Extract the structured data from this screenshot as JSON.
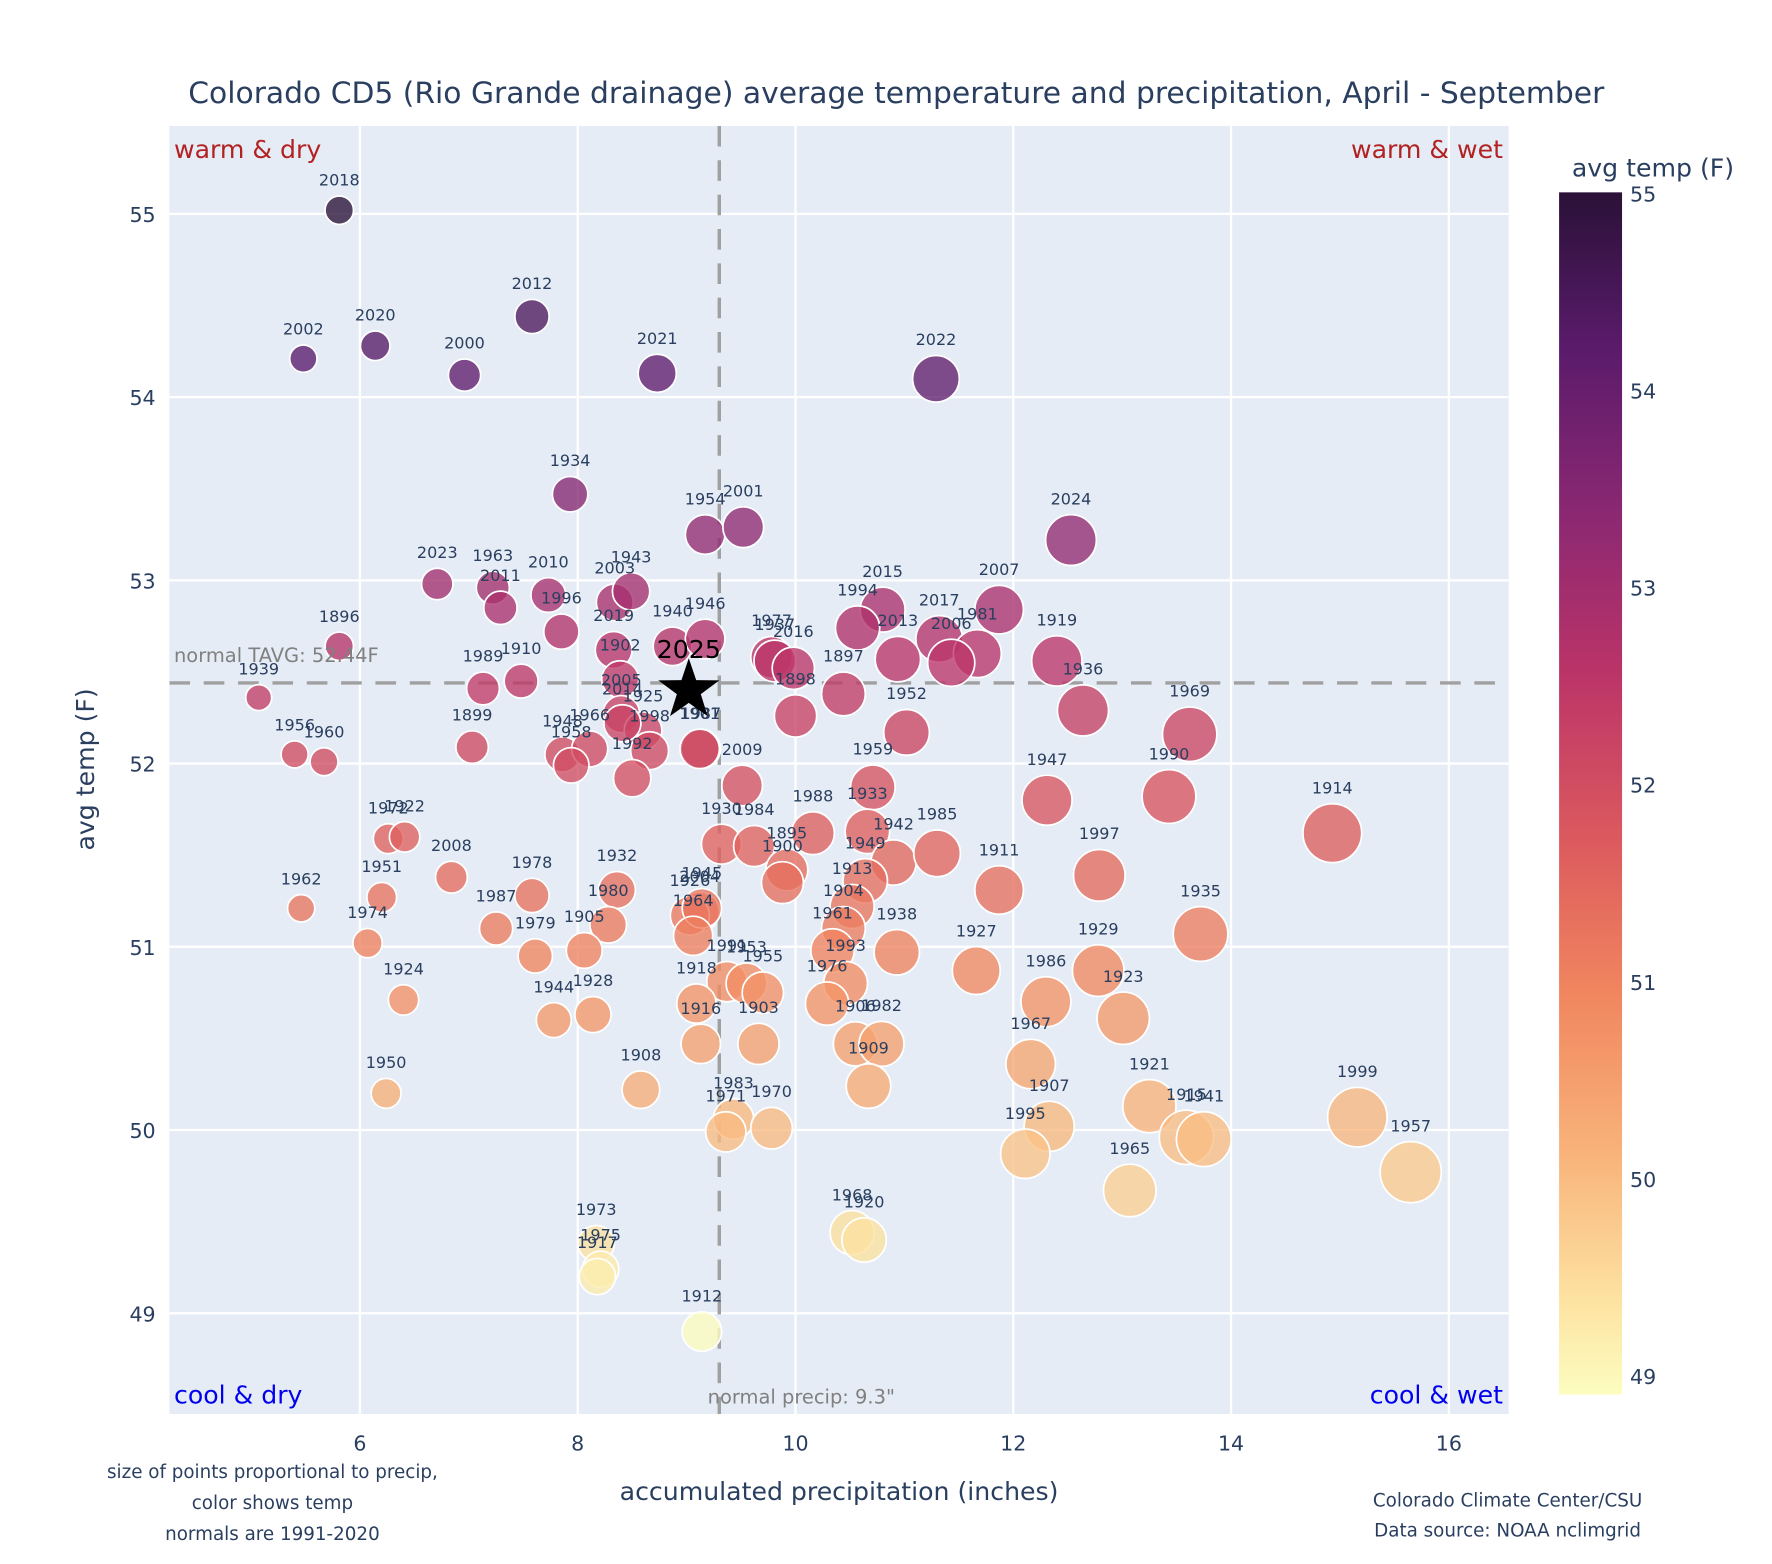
{
  "chart_data": {
    "type": "scatter",
    "title": "Colorado CD5 (Rio Grande drainage) average temperature and precipitation, April - September",
    "xlabel": "accumulated precipitation (inches)",
    "ylabel": "avg temp (F)",
    "xlim": [
      4.25,
      16.55
    ],
    "ylim": [
      48.45,
      55.48
    ],
    "xticks": [
      6,
      8,
      10,
      12,
      14,
      16
    ],
    "yticks": [
      49,
      50,
      51,
      52,
      53,
      54,
      55
    ],
    "grid": true,
    "colorbar": {
      "title": "avg temp (F)",
      "range": [
        48.9,
        55.0
      ],
      "ticks": [
        49,
        50,
        51,
        52,
        53,
        54,
        55
      ],
      "colorscale": "magma_r"
    },
    "normals": {
      "temp": 52.44,
      "temp_label": "normal TAVG: 52.44F",
      "precip": 9.3,
      "precip_label": "normal precip: 9.3\""
    },
    "quadrant_labels": {
      "top_left": "warm & dry",
      "top_right": "warm & wet",
      "bottom_left": "cool & dry",
      "bottom_right": "cool & wet"
    },
    "highlight": {
      "label": "2025",
      "precip": 9.02,
      "temp": 52.4,
      "marker": "star"
    },
    "points": [
      {
        "year": "2018",
        "precip": 5.81,
        "temp": 55.02
      },
      {
        "year": "2002",
        "precip": 5.48,
        "temp": 54.21
      },
      {
        "year": "2020",
        "precip": 6.14,
        "temp": 54.28
      },
      {
        "year": "2000",
        "precip": 6.96,
        "temp": 54.12
      },
      {
        "year": "2012",
        "precip": 7.58,
        "temp": 54.44
      },
      {
        "year": "2021",
        "precip": 8.73,
        "temp": 54.13
      },
      {
        "year": "2022",
        "precip": 11.29,
        "temp": 54.1
      },
      {
        "year": "1934",
        "precip": 7.93,
        "temp": 53.47
      },
      {
        "year": "1954",
        "precip": 9.17,
        "temp": 53.25
      },
      {
        "year": "2001",
        "precip": 9.52,
        "temp": 53.29
      },
      {
        "year": "2024",
        "precip": 12.53,
        "temp": 53.22
      },
      {
        "year": "2023",
        "precip": 6.71,
        "temp": 52.98
      },
      {
        "year": "1963",
        "precip": 7.22,
        "temp": 52.96
      },
      {
        "year": "2011",
        "precip": 7.29,
        "temp": 52.85
      },
      {
        "year": "2010",
        "precip": 7.73,
        "temp": 52.92
      },
      {
        "year": "1996",
        "precip": 7.85,
        "temp": 52.72
      },
      {
        "year": "2003",
        "precip": 8.34,
        "temp": 52.88
      },
      {
        "year": "1943",
        "precip": 8.49,
        "temp": 52.94
      },
      {
        "year": "2019",
        "precip": 8.33,
        "temp": 52.62
      },
      {
        "year": "1902",
        "precip": 8.39,
        "temp": 52.46
      },
      {
        "year": "1940",
        "precip": 8.87,
        "temp": 52.64
      },
      {
        "year": "1946",
        "precip": 9.17,
        "temp": 52.68
      },
      {
        "year": "1896",
        "precip": 5.81,
        "temp": 52.64
      },
      {
        "year": "2015",
        "precip": 10.8,
        "temp": 52.84
      },
      {
        "year": "1994",
        "precip": 10.57,
        "temp": 52.74
      },
      {
        "year": "2017",
        "precip": 11.32,
        "temp": 52.68
      },
      {
        "year": "2007",
        "precip": 11.87,
        "temp": 52.84
      },
      {
        "year": "1981",
        "precip": 11.67,
        "temp": 52.6
      },
      {
        "year": "2006",
        "precip": 11.43,
        "temp": 52.55
      },
      {
        "year": "2013",
        "precip": 10.94,
        "temp": 52.57
      },
      {
        "year": "1977",
        "precip": 9.78,
        "temp": 52.58
      },
      {
        "year": "1937",
        "precip": 9.81,
        "temp": 52.56
      },
      {
        "year": "2016",
        "precip": 9.98,
        "temp": 52.52
      },
      {
        "year": "1898",
        "precip": 10.0,
        "temp": 52.26
      },
      {
        "year": "1897",
        "precip": 10.44,
        "temp": 52.38
      },
      {
        "year": "1919",
        "precip": 12.4,
        "temp": 52.56
      },
      {
        "year": "1936",
        "precip": 12.64,
        "temp": 52.29
      },
      {
        "year": "1952",
        "precip": 11.02,
        "temp": 52.17
      },
      {
        "year": "1969",
        "precip": 13.62,
        "temp": 52.16
      },
      {
        "year": "1939",
        "precip": 5.07,
        "temp": 52.36
      },
      {
        "year": "1989",
        "precip": 7.13,
        "temp": 52.41
      },
      {
        "year": "1910",
        "precip": 7.48,
        "temp": 52.45
      },
      {
        "year": "2005",
        "precip": 8.4,
        "temp": 52.27
      },
      {
        "year": "1925",
        "precip": 8.6,
        "temp": 52.18
      },
      {
        "year": "2014",
        "precip": 8.41,
        "temp": 52.22
      },
      {
        "year": "1987",
        "precip": 9.13,
        "temp": 52.08
      },
      {
        "year": "1956",
        "precip": 5.4,
        "temp": 52.05
      },
      {
        "year": "1960",
        "precip": 5.67,
        "temp": 52.01
      },
      {
        "year": "1899",
        "precip": 7.03,
        "temp": 52.09
      },
      {
        "year": "1948",
        "precip": 7.86,
        "temp": 52.05
      },
      {
        "year": "1966",
        "precip": 8.11,
        "temp": 52.08
      },
      {
        "year": "1958",
        "precip": 7.94,
        "temp": 51.99
      },
      {
        "year": "1998",
        "precip": 8.66,
        "temp": 52.07
      },
      {
        "year": "1901",
        "precip": 9.12,
        "temp": 52.08
      },
      {
        "year": "1992",
        "precip": 8.5,
        "temp": 51.92
      },
      {
        "year": "1947",
        "precip": 12.31,
        "temp": 51.8
      },
      {
        "year": "1990",
        "precip": 13.43,
        "temp": 51.82
      },
      {
        "year": "1914",
        "precip": 14.93,
        "temp": 51.62
      },
      {
        "year": "2009",
        "precip": 9.51,
        "temp": 51.88
      },
      {
        "year": "1930",
        "precip": 9.32,
        "temp": 51.56
      },
      {
        "year": "1988",
        "precip": 10.16,
        "temp": 51.62
      },
      {
        "year": "1959",
        "precip": 10.71,
        "temp": 51.87
      },
      {
        "year": "1984",
        "precip": 9.62,
        "temp": 51.55
      },
      {
        "year": "1895",
        "precip": 9.92,
        "temp": 51.42
      },
      {
        "year": "1933",
        "precip": 10.66,
        "temp": 51.63
      },
      {
        "year": "1942",
        "precip": 10.9,
        "temp": 51.46
      },
      {
        "year": "1985",
        "precip": 11.3,
        "temp": 51.51
      },
      {
        "year": "1900",
        "precip": 9.88,
        "temp": 51.35
      },
      {
        "year": "1949",
        "precip": 10.64,
        "temp": 51.36
      },
      {
        "year": "1972",
        "precip": 6.26,
        "temp": 51.59
      },
      {
        "year": "1922",
        "precip": 6.41,
        "temp": 51.6
      },
      {
        "year": "2008",
        "precip": 6.84,
        "temp": 51.38
      },
      {
        "year": "1951",
        "precip": 6.2,
        "temp": 51.27
      },
      {
        "year": "1962",
        "precip": 5.46,
        "temp": 51.21
      },
      {
        "year": "1978",
        "precip": 7.58,
        "temp": 51.28
      },
      {
        "year": "1932",
        "precip": 8.36,
        "temp": 51.31
      },
      {
        "year": "2004",
        "precip": 9.12,
        "temp": 51.19
      },
      {
        "year": "1926",
        "precip": 9.03,
        "temp": 51.17
      },
      {
        "year": "1945",
        "precip": 9.14,
        "temp": 51.21
      },
      {
        "year": "1964",
        "precip": 9.06,
        "temp": 51.06
      },
      {
        "year": "1913",
        "precip": 10.52,
        "temp": 51.22
      },
      {
        "year": "1904",
        "precip": 10.44,
        "temp": 51.1
      },
      {
        "year": "1961",
        "precip": 10.34,
        "temp": 50.98
      },
      {
        "year": "1938",
        "precip": 10.93,
        "temp": 50.97
      },
      {
        "year": "1911",
        "precip": 11.87,
        "temp": 51.31
      },
      {
        "year": "1997",
        "precip": 12.79,
        "temp": 51.39
      },
      {
        "year": "1935",
        "precip": 13.72,
        "temp": 51.07
      },
      {
        "year": "1974",
        "precip": 6.07,
        "temp": 51.02
      },
      {
        "year": "1987b",
        "precip": 7.25,
        "temp": 51.1
      },
      {
        "year": "1979",
        "precip": 7.61,
        "temp": 50.95
      },
      {
        "year": "1980",
        "precip": 8.28,
        "temp": 51.12
      },
      {
        "year": "1905",
        "precip": 8.06,
        "temp": 50.98
      },
      {
        "year": "1991",
        "precip": 9.37,
        "temp": 50.81
      },
      {
        "year": "1993",
        "precip": 10.46,
        "temp": 50.8
      },
      {
        "year": "1976",
        "precip": 10.29,
        "temp": 50.69
      },
      {
        "year": "1953",
        "precip": 9.55,
        "temp": 50.8
      },
      {
        "year": "1918",
        "precip": 9.09,
        "temp": 50.69
      },
      {
        "year": "1955",
        "precip": 9.7,
        "temp": 50.75
      },
      {
        "year": "1927",
        "precip": 11.66,
        "temp": 50.87
      },
      {
        "year": "1929",
        "precip": 12.78,
        "temp": 50.87
      },
      {
        "year": "1986",
        "precip": 12.3,
        "temp": 50.7
      },
      {
        "year": "1923",
        "precip": 13.01,
        "temp": 50.61
      },
      {
        "year": "1924",
        "precip": 6.4,
        "temp": 50.71
      },
      {
        "year": "1944",
        "precip": 7.78,
        "temp": 50.6
      },
      {
        "year": "1928",
        "precip": 8.14,
        "temp": 50.63
      },
      {
        "year": "1916",
        "precip": 9.13,
        "temp": 50.47
      },
      {
        "year": "1903",
        "precip": 9.66,
        "temp": 50.47
      },
      {
        "year": "1906",
        "precip": 10.55,
        "temp": 50.47
      },
      {
        "year": "1982",
        "precip": 10.79,
        "temp": 50.47
      },
      {
        "year": "1909",
        "precip": 10.67,
        "temp": 50.24
      },
      {
        "year": "1967",
        "precip": 12.16,
        "temp": 50.36
      },
      {
        "year": "1908",
        "precip": 8.58,
        "temp": 50.22
      },
      {
        "year": "1950",
        "precip": 6.24,
        "temp": 50.2
      },
      {
        "year": "1983",
        "precip": 9.43,
        "temp": 50.06
      },
      {
        "year": "1971",
        "precip": 9.36,
        "temp": 49.99
      },
      {
        "year": "1970",
        "precip": 9.78,
        "temp": 50.01
      },
      {
        "year": "1907",
        "precip": 12.33,
        "temp": 50.02
      },
      {
        "year": "1995",
        "precip": 12.11,
        "temp": 49.87
      },
      {
        "year": "1921",
        "precip": 13.25,
        "temp": 50.13
      },
      {
        "year": "1915",
        "precip": 13.59,
        "temp": 49.96
      },
      {
        "year": "1941",
        "precip": 13.75,
        "temp": 49.95
      },
      {
        "year": "1999",
        "precip": 15.16,
        "temp": 50.07
      },
      {
        "year": "1965",
        "precip": 13.07,
        "temp": 49.67
      },
      {
        "year": "1957",
        "precip": 15.65,
        "temp": 49.77
      },
      {
        "year": "1968",
        "precip": 10.52,
        "temp": 49.44
      },
      {
        "year": "1920",
        "precip": 10.63,
        "temp": 49.4
      },
      {
        "year": "1973",
        "precip": 8.17,
        "temp": 49.38
      },
      {
        "year": "1975",
        "precip": 8.21,
        "temp": 49.24
      },
      {
        "year": "1917",
        "precip": 8.18,
        "temp": 49.2
      },
      {
        "year": "1912",
        "precip": 9.14,
        "temp": 48.9
      }
    ]
  },
  "notes": {
    "left": [
      "size of points proportional to precip,",
      "color shows temp",
      "normals are 1991-2020"
    ],
    "right": [
      "Colorado Climate Center/CSU",
      "Data source: NOAA nclimgrid"
    ]
  },
  "colors": {
    "plot_bg": "#e5ecf6",
    "grid": "#ffffff",
    "text": "#2a3f5f",
    "quadrant_warm": "#b22222",
    "quadrant_cool": "#0000ee",
    "normal_line": "#a0a0a0"
  }
}
